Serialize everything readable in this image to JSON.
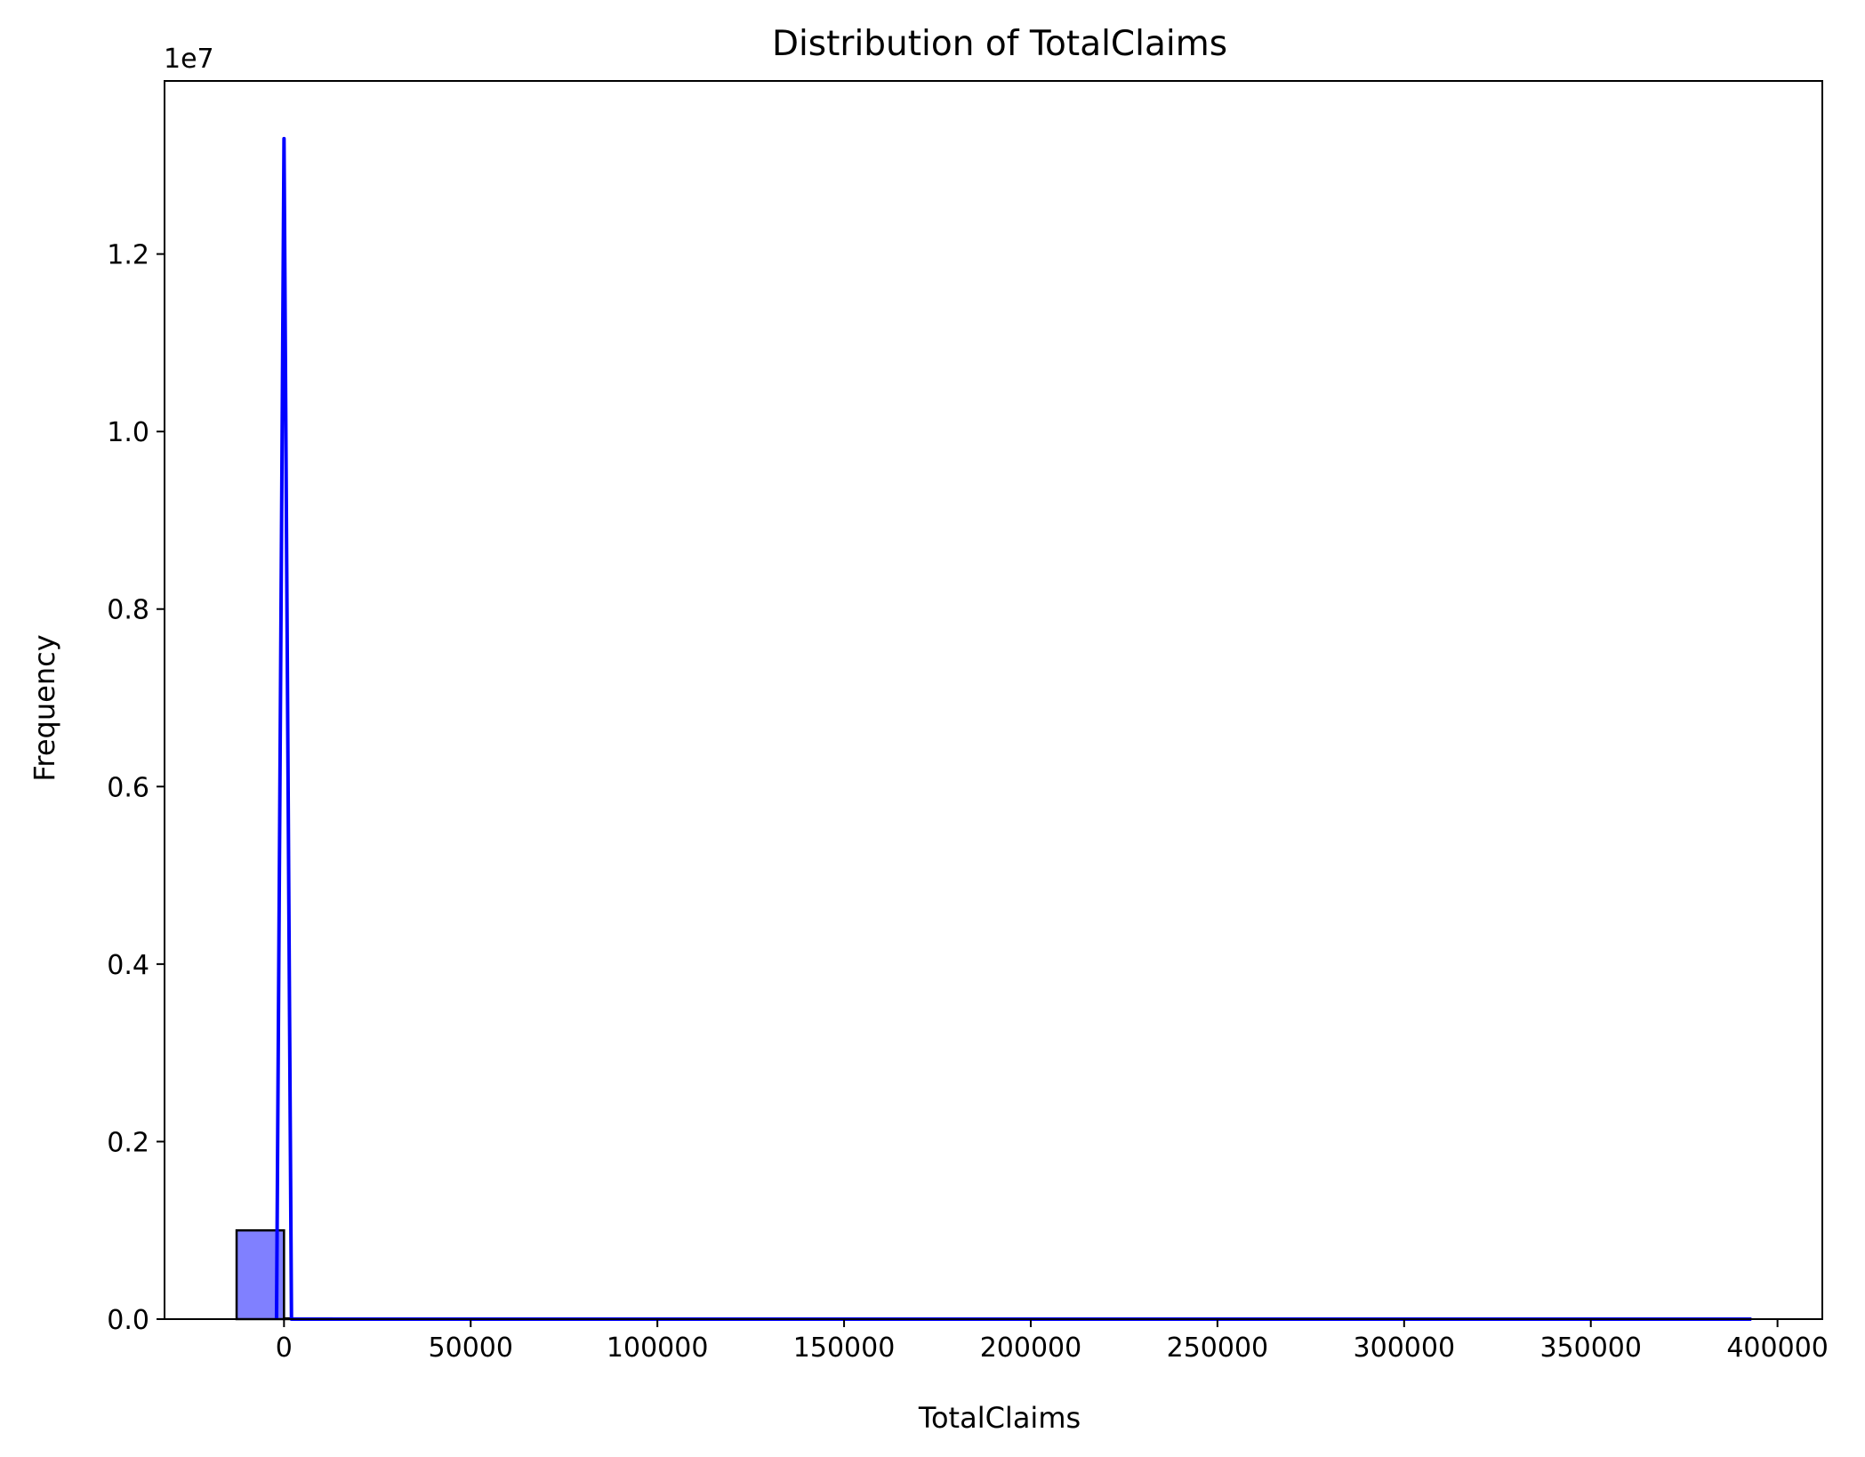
{
  "chart_data": {
    "type": "histogram",
    "title": "Distribution of TotalClaims",
    "xlabel": "TotalClaims",
    "ylabel": "Frequency",
    "y_offset_label": "1e7",
    "y_scale": 10000000,
    "xlim": [
      -32000,
      412000
    ],
    "ylim": [
      0,
      13950000
    ],
    "xticks": [
      0,
      50000,
      100000,
      150000,
      200000,
      250000,
      300000,
      350000,
      400000
    ],
    "xtick_labels": [
      "0",
      "50000",
      "100000",
      "150000",
      "200000",
      "250000",
      "300000",
      "350000",
      "400000"
    ],
    "yticks": [
      0,
      2000000,
      4000000,
      6000000,
      8000000,
      10000000,
      12000000
    ],
    "ytick_labels": [
      "0.0",
      "0.2",
      "0.4",
      "0.6",
      "0.8",
      "1.0",
      "1.2"
    ],
    "bins": [
      {
        "x0": -12700,
        "x1": 0,
        "count": 1000000
      },
      {
        "x0": 0,
        "x1": 12700,
        "count": 8000
      }
    ],
    "bin_edges_empty_tail": [
      12700,
      393000
    ],
    "kde": {
      "color": "#0000ff",
      "points": [
        [
          -2000,
          0
        ],
        [
          0,
          13300000
        ],
        [
          2000,
          0
        ],
        [
          6000,
          0
        ],
        [
          393000,
          0
        ]
      ]
    },
    "bar_color": "#8080ff",
    "bar_edge_color": "#000000",
    "grid": false
  }
}
